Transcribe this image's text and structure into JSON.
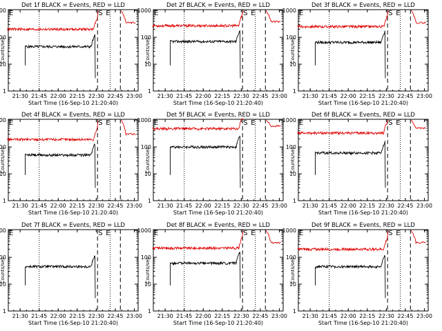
{
  "chart_data": [
    {
      "type": "line",
      "title": "Det 1f BLACK = Events, RED = LLD",
      "xlabel": "Start Time (16-Sep-10 21:20:40)",
      "ylabel": "Counts/sec",
      "ylim": [
        1,
        1000
      ],
      "yscale": "log",
      "xticks": [
        "21:30",
        "21:45",
        "22:00",
        "22:15",
        "22:30",
        "22:45",
        "23:00"
      ],
      "yticks": [
        "1",
        "10",
        "100",
        "1000"
      ],
      "markers": [
        "E",
        "S",
        "E"
      ],
      "dotted_x": [
        "21:45",
        "22:41"
      ],
      "dashed_x": [
        "22:31",
        "22:49"
      ],
      "series": [
        {
          "color": "#000000",
          "x": [
            "21:34",
            "22:29"
          ],
          "level": 45
        },
        {
          "color": "#e00000",
          "x": [
            "21:20",
            "22:31"
          ],
          "level": 200,
          "after": [
            {
              "x": "22:52",
              "y": 350
            }
          ]
        }
      ]
    },
    {
      "type": "line",
      "title": "Det 2f BLACK = Events, RED = LLD",
      "xlabel": "Start Time (16-Sep-10 21:20:40)",
      "ylabel": "Counts/sec",
      "ylim": [
        1,
        1000
      ],
      "yscale": "log",
      "xticks": [
        "21:30",
        "21:45",
        "22:00",
        "22:15",
        "22:30",
        "22:45",
        "23:00"
      ],
      "yticks": [
        "1",
        "10",
        "100",
        "1000"
      ],
      "markers": [
        "E",
        "S",
        "E"
      ],
      "dotted_x": [
        "21:45",
        "22:41"
      ],
      "dashed_x": [
        "22:31",
        "22:49"
      ],
      "series": [
        {
          "color": "#000000",
          "x": [
            "21:34",
            "22:29"
          ],
          "level": 70
        },
        {
          "color": "#e00000",
          "x": [
            "21:20",
            "22:31"
          ],
          "level": 270,
          "after": [
            {
              "x": "22:52",
              "y": 380
            }
          ]
        }
      ]
    },
    {
      "type": "line",
      "title": "Det 3f BLACK = Events, RED = LLD",
      "xlabel": "Start Time (16-Sep-10 21:20:40)",
      "ylabel": "Counts/sec",
      "ylim": [
        1,
        1000
      ],
      "yscale": "log",
      "xticks": [
        "21:30",
        "21:45",
        "22:00",
        "22:15",
        "22:30",
        "22:45",
        "23:00"
      ],
      "yticks": [
        "1",
        "10",
        "100",
        "1000"
      ],
      "markers": [
        "E",
        "S",
        "E"
      ],
      "dotted_x": [
        "21:45",
        "22:41"
      ],
      "dashed_x": [
        "22:31",
        "22:49"
      ],
      "series": [
        {
          "color": "#000000",
          "x": [
            "21:34",
            "22:29"
          ],
          "level": 65
        },
        {
          "color": "#e00000",
          "x": [
            "21:20",
            "22:31"
          ],
          "level": 250,
          "after": [
            {
              "x": "22:52",
              "y": 350
            }
          ]
        }
      ]
    },
    {
      "type": "line",
      "title": "Det 4f BLACK = Events, RED = LLD",
      "xlabel": "Start Time (16-Sep-10 21:20:40)",
      "ylabel": "Counts/sec",
      "ylim": [
        1,
        1000
      ],
      "yscale": "log",
      "xticks": [
        "21:30",
        "21:45",
        "22:00",
        "22:15",
        "22:30",
        "22:45",
        "23:00"
      ],
      "yticks": [
        "1",
        "10",
        "100",
        "1000"
      ],
      "markers": [
        "E",
        "S",
        "E"
      ],
      "dotted_x": [
        "21:45",
        "22:41"
      ],
      "dashed_x": [
        "22:31",
        "22:49"
      ],
      "series": [
        {
          "color": "#000000",
          "x": [
            "21:34",
            "22:29"
          ],
          "level": 50
        },
        {
          "color": "#e00000",
          "x": [
            "21:20",
            "22:31"
          ],
          "level": 190,
          "after": [
            {
              "x": "22:52",
              "y": 300
            }
          ]
        }
      ]
    },
    {
      "type": "line",
      "title": "Det 5f BLACK = Events, RED = LLD",
      "xlabel": "Start Time (16-Sep-10 21:20:40)",
      "ylabel": "Counts/sec",
      "ylim": [
        1,
        1000
      ],
      "yscale": "log",
      "xticks": [
        "21:30",
        "21:45",
        "22:00",
        "22:15",
        "22:30",
        "22:45",
        "23:00"
      ],
      "yticks": [
        "1",
        "10",
        "100",
        "1000"
      ],
      "markers": [
        "E",
        "S",
        "E"
      ],
      "dotted_x": [
        "21:45",
        "22:41"
      ],
      "dashed_x": [
        "22:31",
        "22:49"
      ],
      "series": [
        {
          "color": "#000000",
          "x": [
            "21:34",
            "22:29"
          ],
          "level": 100
        },
        {
          "color": "#e00000",
          "x": [
            "21:20",
            "22:31"
          ],
          "level": 480,
          "after": [
            {
              "x": "22:52",
              "y": 600
            }
          ]
        }
      ]
    },
    {
      "type": "line",
      "title": "Det 6f BLACK = Events, RED = LLD",
      "xlabel": "Start Time (16-Sep-10 21:20:40)",
      "ylabel": "Counts/sec",
      "ylim": [
        1,
        1000
      ],
      "yscale": "log",
      "xticks": [
        "21:30",
        "21:45",
        "22:00",
        "22:15",
        "22:30",
        "22:45",
        "23:00"
      ],
      "yticks": [
        "1",
        "10",
        "100",
        "1000"
      ],
      "markers": [
        "E",
        "S",
        "E"
      ],
      "dotted_x": [
        "21:45",
        "22:41"
      ],
      "dashed_x": [
        "22:31",
        "22:49"
      ],
      "series": [
        {
          "color": "#000000",
          "x": [
            "21:34",
            "22:29"
          ],
          "level": 60
        },
        {
          "color": "#e00000",
          "x": [
            "21:20",
            "22:31"
          ],
          "level": 330,
          "after": [
            {
              "x": "22:52",
              "y": 500
            }
          ]
        }
      ]
    },
    {
      "type": "line",
      "title": "Det 7f BLACK = Events, RED = LLD",
      "xlabel": "Start Time (16-Sep-10 21:20:40)",
      "ylabel": "Counts/sec",
      "ylim": [
        1,
        1000
      ],
      "yscale": "log",
      "xticks": [
        "21:30",
        "21:45",
        "22:00",
        "22:15",
        "22:30",
        "22:45",
        "23:00"
      ],
      "yticks": [
        "1",
        "10",
        "100",
        "1000"
      ],
      "markers": [
        "E",
        "S",
        "E"
      ],
      "dotted_x": [
        "21:45",
        "22:41"
      ],
      "dashed_x": [
        "22:31",
        "22:49"
      ],
      "series": [
        {
          "color": "#000000",
          "x": [
            "21:34",
            "22:29"
          ],
          "level": 45
        }
      ]
    },
    {
      "type": "line",
      "title": "Det 8f BLACK = Events, RED = LLD",
      "xlabel": "Start Time (16-Sep-10 21:20:40)",
      "ylabel": "Counts/sec",
      "ylim": [
        1,
        1000
      ],
      "yscale": "log",
      "xticks": [
        "21:30",
        "21:45",
        "22:00",
        "22:15",
        "22:30",
        "22:45",
        "23:00"
      ],
      "yticks": [
        "1",
        "10",
        "100",
        "1000"
      ],
      "markers": [
        "E",
        "S",
        "E"
      ],
      "dotted_x": [
        "21:45",
        "22:41"
      ],
      "dashed_x": [
        "22:31",
        "22:49"
      ],
      "series": [
        {
          "color": "#000000",
          "x": [
            "21:34",
            "22:29"
          ],
          "level": 60
        },
        {
          "color": "#e00000",
          "x": [
            "21:20",
            "22:31"
          ],
          "level": 220,
          "after": [
            {
              "x": "22:52",
              "y": 350
            }
          ]
        }
      ]
    },
    {
      "type": "line",
      "title": "Det 9f BLACK = Events, RED = LLD",
      "xlabel": "Start Time (16-Sep-10 21:20:40)",
      "ylabel": "Counts/sec",
      "ylim": [
        1,
        1000
      ],
      "yscale": "log",
      "xticks": [
        "21:30",
        "21:45",
        "22:00",
        "22:15",
        "22:30",
        "22:45",
        "23:00"
      ],
      "yticks": [
        "1",
        "10",
        "100",
        "1000"
      ],
      "markers": [
        "E",
        "S",
        "E"
      ],
      "dotted_x": [
        "21:45",
        "22:41"
      ],
      "dashed_x": [
        "22:31",
        "22:49"
      ],
      "series": [
        {
          "color": "#000000",
          "x": [
            "21:34",
            "22:29"
          ],
          "level": 45
        },
        {
          "color": "#e00000",
          "x": [
            "21:20",
            "22:31"
          ],
          "level": 200,
          "after": [
            {
              "x": "22:52",
              "y": 350
            }
          ]
        }
      ]
    }
  ]
}
